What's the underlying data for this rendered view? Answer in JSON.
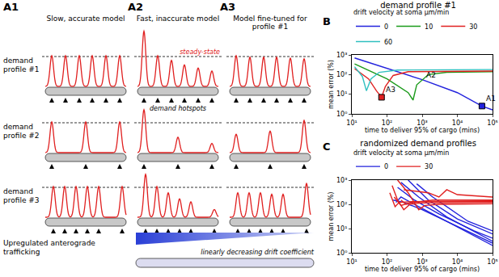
{
  "panel_a": {
    "columns": [
      {
        "label": "A1",
        "title": "Slow, accurate model"
      },
      {
        "label": "A2",
        "title": "Fast, inaccurate model"
      },
      {
        "label": "A3",
        "title": "Model fine-tuned for profile #1"
      }
    ],
    "rows": [
      {
        "label": "demand profile #1",
        "hotspots": [
          0.08,
          0.25,
          0.42,
          0.58,
          0.75,
          0.92
        ],
        "peaks": [
          [
            1,
            1,
            1,
            1,
            1,
            1
          ],
          [
            1.8,
            1.0,
            0.85,
            0.7,
            0.6,
            0.5
          ],
          [
            1.0,
            0.95,
            0.95,
            0.95,
            0.92,
            0.9
          ]
        ]
      },
      {
        "label": "demand profile #2",
        "hotspots": [
          0.08,
          0.5,
          0.92
        ],
        "peaks": [
          [
            1,
            1,
            1
          ],
          [
            1.4,
            0.5,
            0.3
          ],
          [
            0.6,
            0.7,
            1.05
          ]
        ]
      },
      {
        "label": "demand profile #3",
        "hotspots": [
          0.1,
          0.24,
          0.38,
          0.52,
          0.66,
          0.95
        ],
        "peaks": [
          [
            1,
            1,
            1,
            1,
            1,
            1
          ],
          [
            1.4,
            1.0,
            0.8,
            0.6,
            0.5,
            0.25
          ],
          [
            0.8,
            0.8,
            0.8,
            0.75,
            0.75,
            1.1
          ]
        ]
      }
    ],
    "steady_state_label": "steady-state",
    "hotspot_label": "demand hotspots",
    "drift_label": "Upregulated anterograde trafficking",
    "wedge_label": "linearly decreasing drift coefficient"
  },
  "chart_data": [
    {
      "panel_label": "B",
      "type": "line",
      "title": "demand profile #1",
      "x_label": "time to deliver 95% of cargo (mins)",
      "y_label": "mean error (%)",
      "log": true,
      "grid": false,
      "legend": "top",
      "legend_title": "drift velocity at soma μm/min",
      "xlim": [
        10,
        100000
      ],
      "ylim": [
        1,
        1000
      ],
      "xticks": [
        {
          "value": 10,
          "label": "10¹"
        },
        {
          "value": 100,
          "label": "10²"
        },
        {
          "value": 1000,
          "label": "10³"
        },
        {
          "value": 10000,
          "label": "10⁴"
        },
        {
          "value": 100000,
          "label": "10⁵"
        }
      ],
      "yticks": [
        {
          "value": 1,
          "label": "10⁰"
        },
        {
          "value": 10,
          "label": "10¹"
        },
        {
          "value": 100,
          "label": "10²"
        },
        {
          "value": 1000,
          "label": "10³"
        }
      ],
      "series": [
        {
          "name": "0",
          "color": "#2222dd",
          "x": [
            12,
            100,
            1000,
            10000,
            50000,
            100000
          ],
          "y": [
            700,
            200,
            55,
            12,
            2.5,
            1.6
          ]
        },
        {
          "name": "10",
          "color": "#1a9a1a",
          "x": [
            12,
            100,
            400,
            550,
            700,
            1500,
            5000,
            100000
          ],
          "y": [
            350,
            60,
            12,
            5,
            30,
            100,
            130,
            140
          ]
        },
        {
          "name": "30",
          "color": "#e02020",
          "x": [
            12,
            30,
            50,
            70,
            90,
            150,
            400,
            100000
          ],
          "y": [
            200,
            60,
            15,
            7,
            25,
            90,
            140,
            150
          ]
        },
        {
          "name": "60",
          "color": "#30c0c0",
          "x": [
            12,
            20,
            26,
            35,
            60,
            200,
            100000
          ],
          "y": [
            250,
            80,
            15,
            60,
            130,
            170,
            180
          ]
        }
      ],
      "annotations": [
        {
          "text": "A1",
          "x": 50000,
          "y": 2.5,
          "color": "#2222dd",
          "marker": "square"
        },
        {
          "text": "A2",
          "x": 1000,
          "y": 40
        },
        {
          "text": "A3",
          "x": 70,
          "y": 7,
          "color": "#e02020",
          "marker": "square"
        }
      ]
    },
    {
      "panel_label": "C",
      "type": "line",
      "title": "randomized demand profiles",
      "x_label": "time to deliver 95% of cargo (mins)",
      "y_label": "mean error (%)",
      "log": true,
      "grid": false,
      "legend": "top",
      "legend_title": "drift velocity at soma μm/min",
      "xlim": [
        10,
        100000
      ],
      "ylim": [
        1,
        1000
      ],
      "xticks": [
        {
          "value": 10,
          "label": "10¹"
        },
        {
          "value": 100,
          "label": "10²"
        },
        {
          "value": 1000,
          "label": "10³"
        },
        {
          "value": 10000,
          "label": "10⁴"
        },
        {
          "value": 100000,
          "label": "10⁵"
        }
      ],
      "yticks": [
        {
          "value": 1,
          "label": "10⁰"
        },
        {
          "value": 10,
          "label": "10¹"
        },
        {
          "value": 100,
          "label": "10²"
        },
        {
          "value": 1000,
          "label": "10³"
        }
      ],
      "series": [
        {
          "name": "0",
          "color": "#2222dd",
          "curves": [
            {
              "x": [
                150,
                300,
                1000,
                10000,
                100000
              ],
              "y": [
                150,
                120,
                60,
                12,
                2.5
              ]
            },
            {
              "x": [
                200,
                600,
                3000,
                30000,
                100000
              ],
              "y": [
                500,
                150,
                40,
                8,
                4
              ]
            },
            {
              "x": [
                250,
                800,
                5000,
                100000
              ],
              "y": [
                800,
                200,
                30,
                3
              ]
            },
            {
              "x": [
                400,
                1500,
                10000,
                100000
              ],
              "y": [
                1000,
                150,
                25,
                6
              ]
            },
            {
              "x": [
                700,
                2000,
                20000,
                100000
              ],
              "y": [
                700,
                200,
                20,
                8
              ]
            },
            {
              "x": [
                180,
                250,
                600,
                5000,
                100000
              ],
              "y": [
                120,
                200,
                100,
                20,
                2
              ]
            }
          ]
        },
        {
          "name": "30",
          "color": "#e02020",
          "curves": [
            {
              "x": [
                120,
                170,
                220,
                500,
                100000
              ],
              "y": [
                300,
                80,
                120,
                130,
                140
              ]
            },
            {
              "x": [
                140,
                200,
                300,
                450,
                1000,
                100000
              ],
              "y": [
                600,
                150,
                60,
                100,
                115,
                120
              ]
            },
            {
              "x": [
                160,
                250,
                400,
                2000,
                100000
              ],
              "y": [
                200,
                90,
                110,
                150,
                150
              ]
            },
            {
              "x": [
                200,
                400,
                800,
                1200,
                3000,
                100000
              ],
              "y": [
                1000,
                300,
                60,
                90,
                100,
                105
              ]
            },
            {
              "x": [
                250,
                350,
                600,
                100000
              ],
              "y": [
                150,
                100,
                130,
                130
              ]
            },
            {
              "x": [
                300,
                1500,
                3000,
                5000,
                10000,
                100000
              ],
              "y": [
                400,
                300,
                200,
                400,
                250,
                200
              ]
            }
          ]
        }
      ]
    }
  ]
}
